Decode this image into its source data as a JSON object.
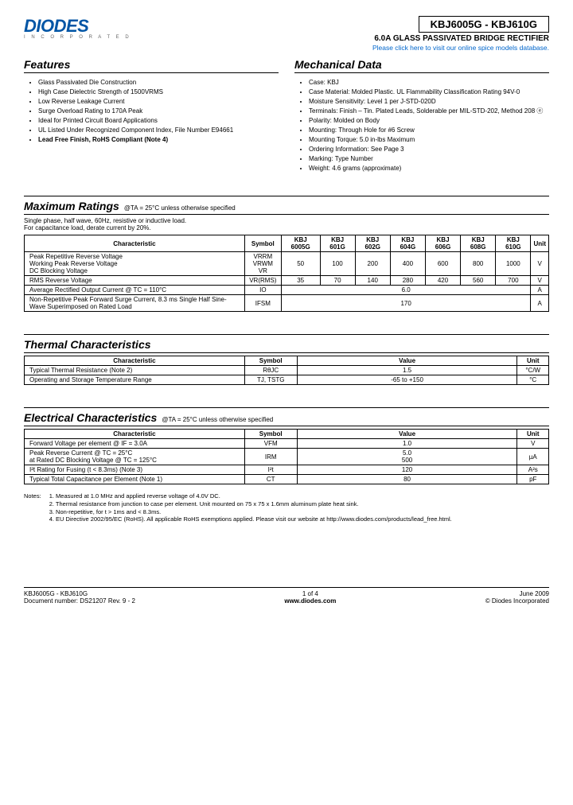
{
  "logo": {
    "name": "DIODES",
    "sub": "I N C O R P O R A T E D"
  },
  "header": {
    "part_range": "KBJ6005G - KBJ610G",
    "subtitle": "6.0A GLASS PASSIVATED BRIDGE RECTIFIER",
    "spice_link": "Please click here to visit our online spice models database."
  },
  "features": {
    "title": "Features",
    "items": [
      "Glass Passivated Die Construction",
      "High Case Dielectric Strength of 1500VRMS",
      "Low Reverse Leakage Current",
      "Surge Overload Rating to 170A Peak",
      "Ideal for Printed Circuit Board Applications",
      "UL Listed Under Recognized Component Index, File Number E94661",
      "Lead Free Finish, RoHS Compliant (Note 4)"
    ]
  },
  "mechanical": {
    "title": "Mechanical Data",
    "items": [
      "Case: KBJ",
      "Case Material: Molded Plastic. UL Flammability Classification Rating 94V-0",
      "Moisture Sensitivity: Level 1 per J-STD-020D",
      "Terminals: Finish – Tin. Plated Leads, Solderable per MIL-STD-202, Method 208 ⓔ",
      "Polarity: Molded on Body",
      "Mounting: Through Hole for #6 Screw",
      "Mounting Torque: 5.0 in-lbs Maximum",
      "Ordering Information: See Page 3",
      "Marking: Type Number",
      "Weight: 4.6 grams (approximate)"
    ]
  },
  "max_ratings": {
    "title": "Maximum Ratings",
    "condition": "@TA = 25°C unless otherwise specified",
    "note": "Single phase, half wave, 60Hz, resistive or inductive load.\nFor capacitance load, derate current by 20%.",
    "headers": [
      "Characteristic",
      "Symbol",
      "KBJ 6005G",
      "KBJ 601G",
      "KBJ 602G",
      "KBJ 604G",
      "KBJ 606G",
      "KBJ 608G",
      "KBJ 610G",
      "Unit"
    ],
    "rows": [
      {
        "char": "Peak Repetitive Reverse Voltage\nWorking Peak Reverse Voltage\nDC Blocking Voltage",
        "sym": "VRRM\nVRWM\nVR",
        "v": [
          "50",
          "100",
          "200",
          "400",
          "600",
          "800",
          "1000"
        ],
        "unit": "V"
      },
      {
        "char": "RMS Reverse Voltage",
        "sym": "VR(RMS)",
        "v": [
          "35",
          "70",
          "140",
          "280",
          "420",
          "560",
          "700"
        ],
        "unit": "V"
      },
      {
        "char": "Average Rectified Output Current                          @ TC = 110°C",
        "sym": "IO",
        "span": "6.0",
        "unit": "A"
      },
      {
        "char": "Non-Repetitive Peak Forward Surge Current, 8.3 ms Single Half Sine-Wave Superimposed on Rated Load",
        "sym": "IFSM",
        "span": "170",
        "unit": "A"
      }
    ]
  },
  "thermal": {
    "title": "Thermal Characteristics",
    "headers": [
      "Characteristic",
      "Symbol",
      "Value",
      "Unit"
    ],
    "rows": [
      {
        "c": "Typical Thermal Resistance (Note 2)",
        "s": "RθJC",
        "v": "1.5",
        "u": "°C/W"
      },
      {
        "c": "Operating and Storage Temperature Range",
        "s": "TJ, TSTG",
        "v": "-65 to +150",
        "u": "°C"
      }
    ]
  },
  "electrical": {
    "title": "Electrical Characteristics",
    "condition": "@TA = 25°C unless otherwise specified",
    "headers": [
      "Characteristic",
      "Symbol",
      "Value",
      "Unit"
    ],
    "rows": [
      {
        "c": "Forward Voltage per element                                           @ IF = 3.0A",
        "s": "VFM",
        "v": "1.0",
        "u": "V"
      },
      {
        "c": "Peak Reverse Current                                           @ TC =   25°C\nat Rated DC Blocking Voltage                              @ TC = 125°C",
        "s": "IRM",
        "v": "5.0\n500",
        "u": "µA"
      },
      {
        "c": "I²t Rating for Fusing (t < 8.3ms) (Note 3)",
        "s": "I²t",
        "v": "120",
        "u": "A²s"
      },
      {
        "c": "Typical Total Capacitance per Element (Note 1)",
        "s": "CT",
        "v": "80",
        "u": "pF"
      }
    ]
  },
  "notes": {
    "label": "Notes:",
    "items": [
      "1.   Measured at 1.0 MHz and applied reverse voltage of 4.0V DC.",
      "2.   Thermal resistance from junction to case per element. Unit mounted on 75 x 75 x 1.6mm aluminum plate heat sink.",
      "3.   Non-repetitive, for t > 1ms and < 8.3ms.",
      "4.   EU Directive 2002/95/EC (RoHS). All applicable RoHS exemptions applied. Please visit our website at http://www.diodes.com/products/lead_free.html."
    ]
  },
  "footer": {
    "left1": "KBJ6005G - KBJ610G",
    "left2": "Document number: DS21207 Rev. 9 - 2",
    "mid1": "1 of 4",
    "mid2": "www.diodes.com",
    "right1": "June 2009",
    "right2": "© Diodes Incorporated"
  },
  "colors": {
    "brand": "#0055a5",
    "link": "#0066cc",
    "text": "#000000",
    "bg": "#ffffff"
  }
}
